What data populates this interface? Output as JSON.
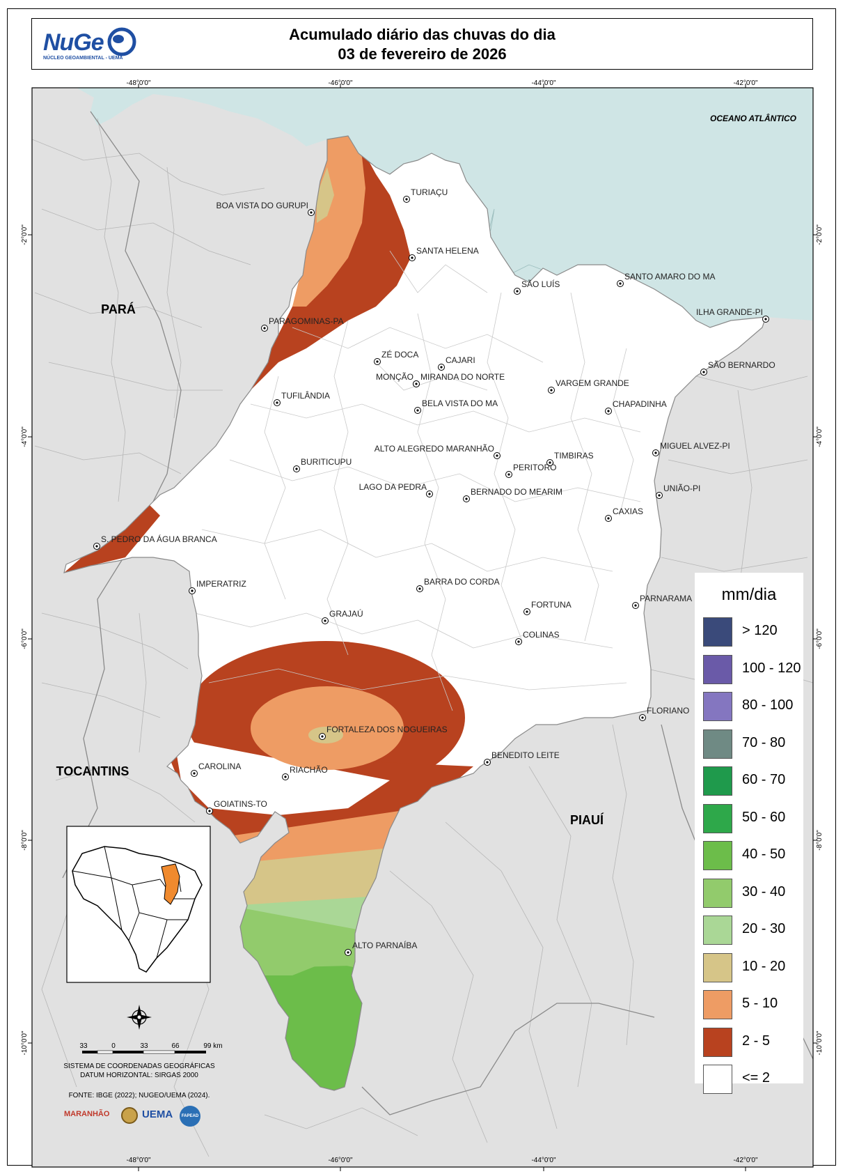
{
  "title": {
    "line1": "Acumulado diário das chuvas do dia",
    "line2": "03 de fevereiro de 2026"
  },
  "logo": {
    "name": "NuGe",
    "subtitle": "NÚCLEO GEOAMBIENTAL - UEMA"
  },
  "graticule": {
    "lon_labels": [
      "-48°0'0\"",
      "-46°0'0\"",
      "-44°0'0\"",
      "-42°0'0\""
    ],
    "lat_labels": [
      "-2°0'0\"",
      "-4°0'0\"",
      "-6°0'0\"",
      "-8°0'0\"",
      "-10°0'0\""
    ]
  },
  "regions": {
    "para": "PARÁ",
    "tocantins": "TOCANTINS",
    "piaui": "PIAUÍ",
    "ocean": "OCEANO ATLÂNTICO"
  },
  "cities": [
    {
      "name": "TURIAÇU"
    },
    {
      "name": "BOA VISTA DO GURUPI"
    },
    {
      "name": "SANTA HELENA"
    },
    {
      "name": "SÃO LUÍS"
    },
    {
      "name": "SANTO AMARO DO MA"
    },
    {
      "name": "PARAGOMINAS-PA"
    },
    {
      "name": "ILHA GRANDE-PI"
    },
    {
      "name": "ZÉ DOCA"
    },
    {
      "name": "CAJARI"
    },
    {
      "name": "SÃO BERNARDO"
    },
    {
      "name": "MONÇÃO"
    },
    {
      "name": "MIRANDA DO NORTE"
    },
    {
      "name": "VARGEM GRANDE"
    },
    {
      "name": "TUFILÂNDIA"
    },
    {
      "name": "BELA VISTA DO MA"
    },
    {
      "name": "CHAPADINHA"
    },
    {
      "name": "ALTO ALEGREDO MARANHÃO"
    },
    {
      "name": "MIGUEL ALVEZ-PI"
    },
    {
      "name": "BURITICUPU"
    },
    {
      "name": "TIMBIRAS"
    },
    {
      "name": "PERITORÓ"
    },
    {
      "name": "LAGO DA PEDRA"
    },
    {
      "name": "BERNADO DO MEARIM"
    },
    {
      "name": "UNIÃO-PI"
    },
    {
      "name": "CAXIAS"
    },
    {
      "name": "S. PEDRO DA ÁGUA BRANCA"
    },
    {
      "name": "IMPERATRIZ"
    },
    {
      "name": "BARRA DO CORDA"
    },
    {
      "name": "PARNARAMA"
    },
    {
      "name": "FORTUNA"
    },
    {
      "name": "GRAJAÚ"
    },
    {
      "name": "COLINAS"
    },
    {
      "name": "FLORIANO"
    },
    {
      "name": "FORTALEZA DOS NOGUEIRAS"
    },
    {
      "name": "BENEDITO LEITE"
    },
    {
      "name": "CAROLINA"
    },
    {
      "name": "RIACHÃO"
    },
    {
      "name": "GOIATINS-TO"
    },
    {
      "name": "ALTO PARNAÍBA"
    }
  ],
  "legend": {
    "title": "mm/dia",
    "items": [
      {
        "label": "> 120",
        "color": "#3a4a7a"
      },
      {
        "label": "100 - 120",
        "color": "#6a5aa8"
      },
      {
        "label": "80 - 100",
        "color": "#8476c0"
      },
      {
        "label": "70 - 80",
        "color": "#6f8a84"
      },
      {
        "label": "60 - 70",
        "color": "#1f9a4c"
      },
      {
        "label": "50 - 60",
        "color": "#2ea84a"
      },
      {
        "label": "40 - 50",
        "color": "#6cbd4a"
      },
      {
        "label": "30 - 40",
        "color": "#92cb6c"
      },
      {
        "label": "20 - 30",
        "color": "#aad796"
      },
      {
        "label": "10 - 20",
        "color": "#d6c588"
      },
      {
        "label": "5 - 10",
        "color": "#ee9c64"
      },
      {
        "label": "2 - 5",
        "color": "#b8421f"
      },
      {
        "label": "<= 2",
        "color": "#ffffff"
      }
    ]
  },
  "scale": {
    "ticks": [
      "33",
      "0",
      "33",
      "66",
      "99 km"
    ]
  },
  "footer": {
    "crs_line1": "SISTEMA DE COORDENADAS GEOGRÁFICAS",
    "crs_line2": "DATUM HORIZONTAL: SIRGAS 2000",
    "source": "FONTE: IBGE (2022); NUGEO/UEMA (2024).",
    "logos": [
      "MARANHÃO",
      "UEMA",
      "FAPEAD"
    ]
  }
}
